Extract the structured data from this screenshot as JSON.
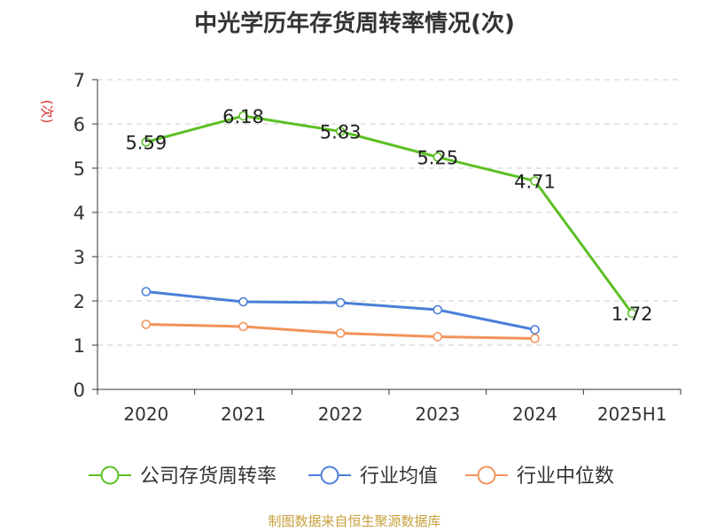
{
  "chart_data": {
    "type": "line",
    "title": "中光学历年存货周转率情况(次)",
    "ylabel": "(次)",
    "categories": [
      "2020",
      "2021",
      "2022",
      "2023",
      "2024",
      "2025H1"
    ],
    "ylim": [
      0,
      7
    ],
    "yticks": [
      "0",
      "1",
      "2",
      "3",
      "4",
      "5",
      "6",
      "7"
    ],
    "grid": true,
    "legend_position": "bottom",
    "series": [
      {
        "name": "公司存货周转率",
        "color": "#5cc025",
        "values": [
          5.59,
          6.18,
          5.83,
          5.25,
          4.71,
          1.72
        ],
        "labels": [
          "5.59",
          "6.18",
          "5.83",
          "5.25",
          "4.71",
          "1.72"
        ]
      },
      {
        "name": "行业均值",
        "color": "#4a7fd8",
        "values": [
          2.21,
          1.98,
          1.96,
          1.8,
          1.35,
          null
        ]
      },
      {
        "name": "行业中位数",
        "color": "#f3935a",
        "values": [
          1.47,
          1.42,
          1.27,
          1.19,
          1.15,
          null
        ]
      }
    ]
  },
  "source_note": "制图数据来自恒生聚源数据库",
  "colors": {
    "axis": "#333333",
    "grid": "#cccccc",
    "ylabel": "#d9312b"
  }
}
